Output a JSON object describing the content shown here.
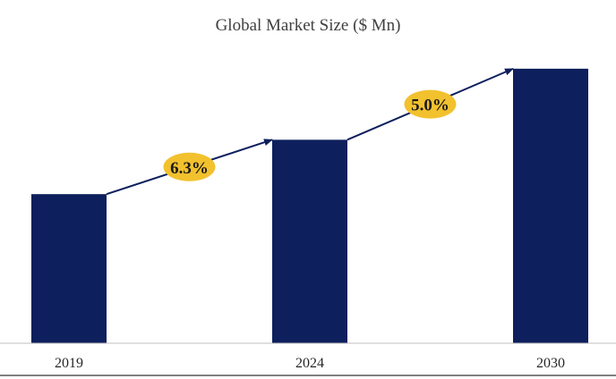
{
  "chart_data": {
    "type": "bar",
    "title": "Global Market Size ($ Mn)",
    "categories": [
      "2019",
      "2024",
      "2030"
    ],
    "values": [
      170,
      232,
      313
    ],
    "xlabel": "",
    "ylabel": "",
    "ylim": [
      0,
      320
    ],
    "grid": false,
    "bar_color": "#0d1f5c",
    "annotations": [
      {
        "from": "2019",
        "to": "2024",
        "label": "6.3%"
      },
      {
        "from": "2024",
        "to": "2030",
        "label": "5.0%"
      }
    ],
    "annotation_color": "#f2c12e",
    "arrow_color": "#0d1f5c"
  }
}
